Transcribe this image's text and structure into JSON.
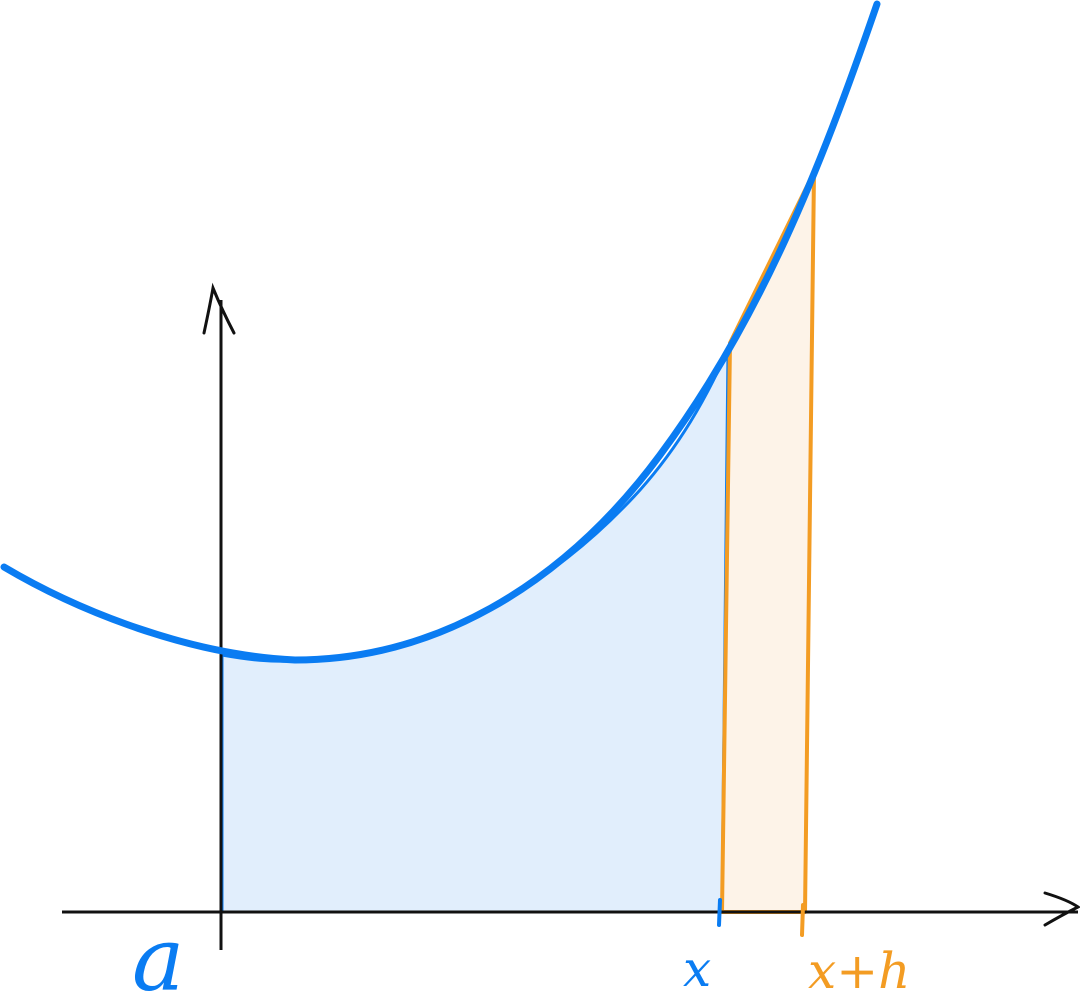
{
  "diagram": {
    "description_labels": {
      "a": "a",
      "x": "x",
      "x_plus_h": "x+h"
    },
    "colors": {
      "curve": "#0a7cf2",
      "area_fill": "#e1eefc",
      "strip_stroke": "#f39c23",
      "strip_fill": "#fdf3e8",
      "axes": "#111111"
    }
  }
}
